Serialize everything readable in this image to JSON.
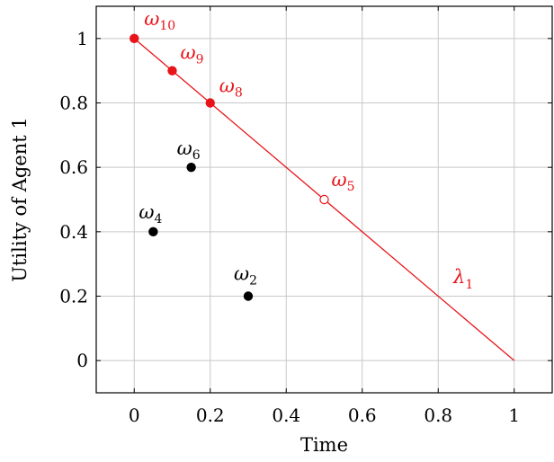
{
  "chart_data": {
    "type": "scatter",
    "title": "",
    "xlabel": "Time",
    "ylabel": "Utility of Agent 1",
    "xlim": [
      -0.1,
      1.1
    ],
    "ylim": [
      -0.1,
      1.1
    ],
    "grid": true,
    "x_ticks": [
      0,
      0.2,
      0.4,
      0.6,
      0.8,
      1
    ],
    "x_tick_labels": [
      "0",
      "0.2",
      "0.4",
      "0.6",
      "0.8",
      "1"
    ],
    "y_ticks": [
      0,
      0.2,
      0.4,
      0.6,
      0.8,
      1
    ],
    "y_tick_labels": [
      "0",
      "0.2",
      "0.4",
      "0.6",
      "0.8",
      "1"
    ],
    "line": {
      "label": "λ",
      "label_sub": "1",
      "color": "#e8141a",
      "x": [
        0,
        1
      ],
      "y": [
        1,
        0
      ]
    },
    "points": [
      {
        "label": "ω",
        "sub": "10",
        "x": 0,
        "y": 1,
        "color": "#e8141a",
        "filled": true
      },
      {
        "label": "ω",
        "sub": "9",
        "x": 0.1,
        "y": 0.9,
        "color": "#e8141a",
        "filled": true
      },
      {
        "label": "ω",
        "sub": "8",
        "x": 0.2,
        "y": 0.8,
        "color": "#e8141a",
        "filled": true
      },
      {
        "label": "ω",
        "sub": "5",
        "x": 0.5,
        "y": 0.5,
        "color": "#e8141a",
        "filled": false
      },
      {
        "label": "ω",
        "sub": "6",
        "x": 0.15,
        "y": 0.6,
        "color": "#000000",
        "filled": true
      },
      {
        "label": "ω",
        "sub": "4",
        "x": 0.05,
        "y": 0.4,
        "color": "#000000",
        "filled": true
      },
      {
        "label": "ω",
        "sub": "2",
        "x": 0.3,
        "y": 0.2,
        "color": "#000000",
        "filled": true
      }
    ]
  }
}
